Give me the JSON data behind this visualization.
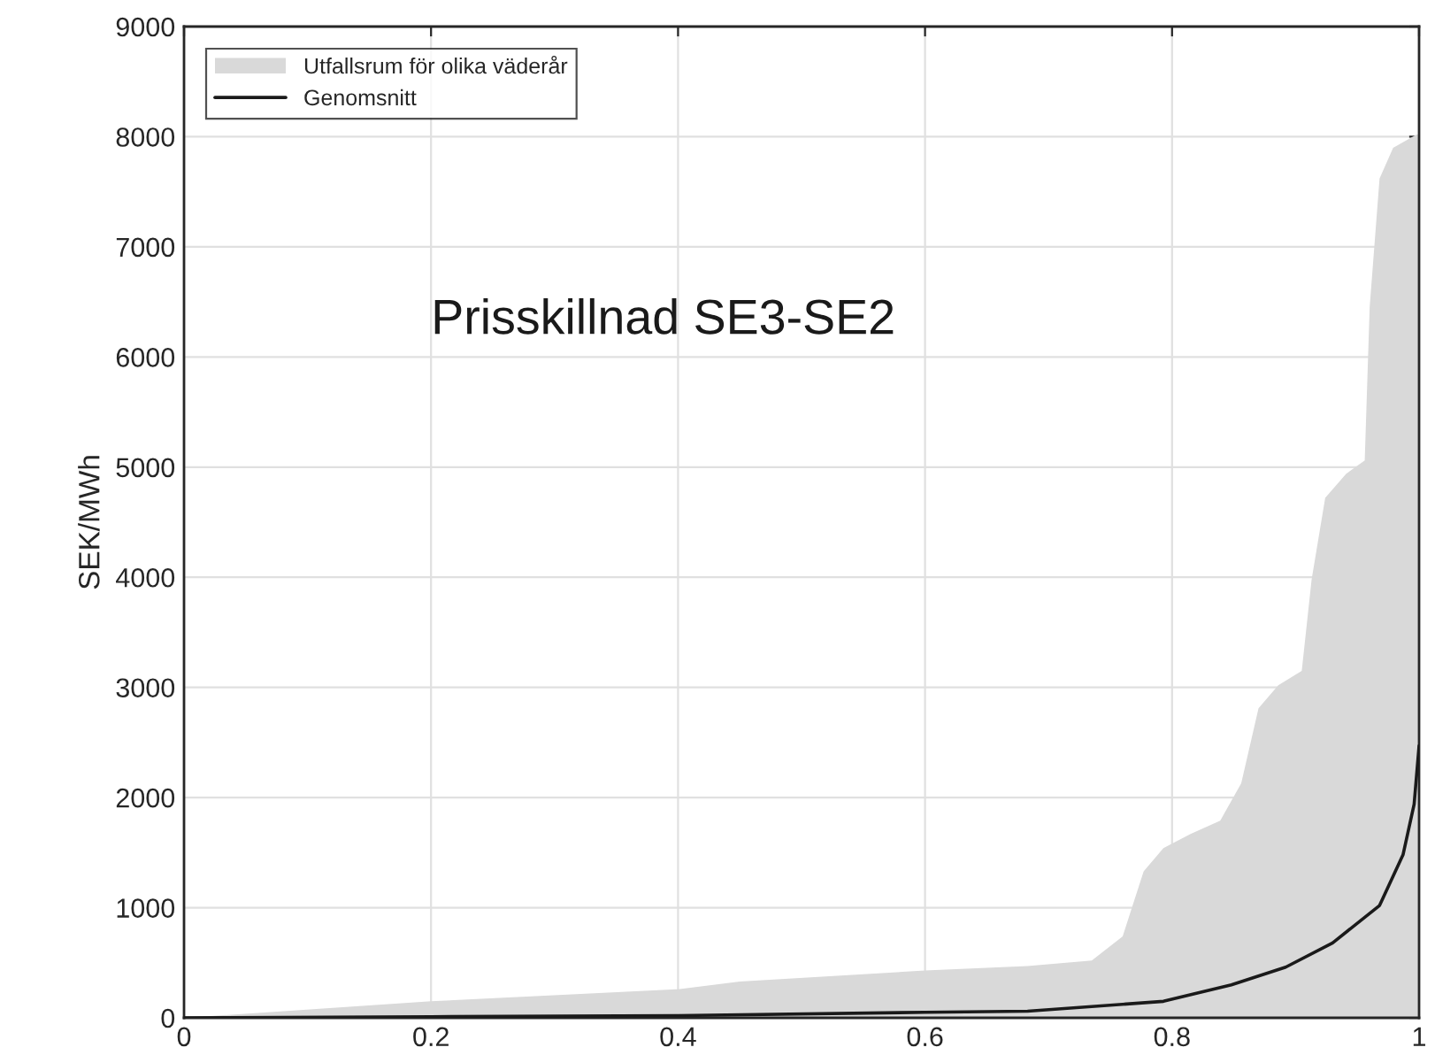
{
  "chart_data": {
    "type": "line",
    "ylabel": "SEK/MWh",
    "annotations": [
      "Prisskillnad SE3-SE2"
    ],
    "series": [
      {
        "name": "Utfallsrum för olika väderår",
        "type": "area",
        "color": "#d9d9d9",
        "x": [
          0,
          0.2,
          0.4,
          0.45,
          0.6,
          0.683,
          0.735,
          0.76,
          0.777,
          0.793,
          0.815,
          0.839,
          0.856,
          0.87,
          0.886,
          0.905,
          0.913,
          0.924,
          0.941,
          0.956,
          0.96,
          0.968,
          0.979,
          0.998,
          1.0
        ],
        "values": [
          0,
          150,
          260,
          330,
          430,
          470,
          520,
          740,
          1330,
          1540,
          1670,
          1790,
          2130,
          2810,
          3020,
          3150,
          3980,
          4720,
          4940,
          5060,
          6450,
          7620,
          7900,
          8020,
          8020
        ]
      },
      {
        "name": "Genomsnitt",
        "color": "#1a1a1a",
        "x": [
          0,
          0.2,
          0.4,
          0.6,
          0.683,
          0.793,
          0.848,
          0.892,
          0.93,
          0.968,
          0.987,
          0.996,
          1.0
        ],
        "values": [
          0,
          10,
          20,
          50,
          60,
          150,
          300,
          460,
          680,
          1020,
          1480,
          1940,
          2470
        ]
      }
    ],
    "xlim": [
      0,
      1
    ],
    "ylim": [
      0,
      9000
    ],
    "xticks": [
      0,
      0.2,
      0.4,
      0.6,
      0.8,
      1
    ],
    "yticks": [
      0,
      1000,
      2000,
      3000,
      4000,
      5000,
      6000,
      7000,
      8000,
      9000
    ],
    "grid": true,
    "legend": "top left"
  }
}
